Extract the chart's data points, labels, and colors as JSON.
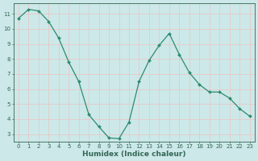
{
  "x": [
    0,
    1,
    2,
    3,
    4,
    5,
    6,
    7,
    8,
    9,
    10,
    11,
    12,
    13,
    14,
    15,
    16,
    17,
    18,
    19,
    20,
    21,
    22,
    23
  ],
  "y": [
    10.7,
    11.3,
    11.2,
    10.5,
    9.4,
    7.8,
    6.5,
    4.3,
    3.5,
    2.75,
    2.7,
    3.8,
    6.5,
    7.9,
    8.9,
    9.7,
    8.3,
    7.1,
    6.3,
    5.8,
    5.8,
    5.4,
    4.7,
    4.2
  ],
  "line_color": "#2e8b6e",
  "marker": "D",
  "marker_size": 2.0,
  "bg_color": "#cce8e8",
  "grid_color": "#e8c8c8",
  "xlabel": "Humidex (Indice chaleur)",
  "xlabel_color": "#336655",
  "ylim": [
    2.5,
    11.7
  ],
  "xlim": [
    -0.5,
    23.5
  ],
  "yticks": [
    3,
    4,
    5,
    6,
    7,
    8,
    9,
    10,
    11
  ],
  "xticks": [
    0,
    1,
    2,
    3,
    4,
    5,
    6,
    7,
    8,
    9,
    10,
    11,
    12,
    13,
    14,
    15,
    16,
    17,
    18,
    19,
    20,
    21,
    22,
    23
  ],
  "tick_color": "#336655",
  "axis_color": "#336655",
  "tick_fontsize": 5.0,
  "xlabel_fontsize": 6.5,
  "line_width": 0.9
}
